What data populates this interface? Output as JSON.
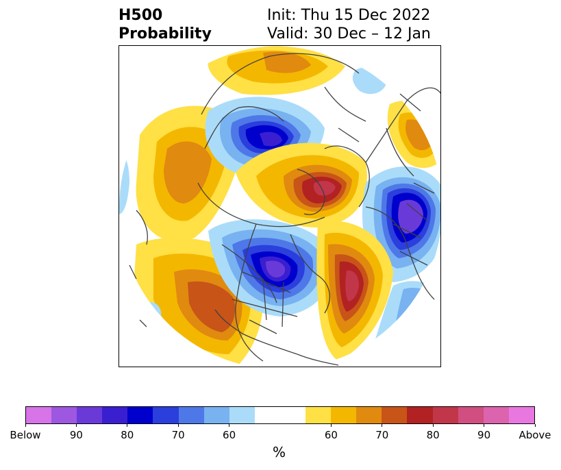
{
  "title": {
    "left_line1": "H500",
    "left_line2": "Probability",
    "right_line1": "Init: Thu 15 Dec 2022",
    "right_line2": "Valid: 30 Dec – 12 Jan"
  },
  "colorbar": {
    "unit": "%",
    "colors": [
      "#d674e8",
      "#9d57e0",
      "#6a3ad8",
      "#3a1fd1",
      "#0000cc",
      "#2a3fdc",
      "#4e78e8",
      "#78b2f0",
      "#aadcfa",
      "#ffffff",
      "#ffffff",
      "#ffe045",
      "#f4b700",
      "#e08a10",
      "#c85418",
      "#b22222",
      "#c2364a",
      "#d04e80",
      "#dc64ae",
      "#e878e0"
    ],
    "tick_labels": [
      {
        "label": "Below",
        "index": 0
      },
      {
        "label": "90",
        "index": 2
      },
      {
        "label": "80",
        "index": 4
      },
      {
        "label": "70",
        "index": 6
      },
      {
        "label": "60",
        "index": 8
      },
      {
        "label": "60",
        "index": 12
      },
      {
        "label": "70",
        "index": 14
      },
      {
        "label": "80",
        "index": 16
      },
      {
        "label": "90",
        "index": 18
      },
      {
        "label": "Above",
        "index": 20
      }
    ]
  },
  "map": {
    "colors": {
      "below_60": "#aadcfa",
      "below_65": "#78b2f0",
      "below_70": "#4e78e8",
      "below_75": "#2a3fdc",
      "below_80": "#0000cc",
      "below_85": "#3a1fd1",
      "below_90": "#6a3ad8",
      "above_55": "#ffe045",
      "above_65": "#f4b700",
      "above_70": "#e08a10",
      "above_75": "#c85418",
      "above_80": "#b22222",
      "above_85": "#c2364a",
      "coastline": "#404040"
    }
  }
}
